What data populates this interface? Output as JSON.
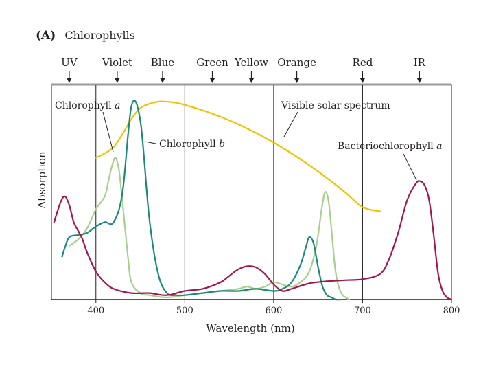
{
  "figure": {
    "panel": "(A)",
    "title": "Chlorophylls"
  },
  "chart_data": {
    "type": "line",
    "title": "(A) Chlorophylls",
    "xlabel": "Wavelength (nm)",
    "ylabel": "Absorption",
    "xlim": [
      350,
      800
    ],
    "ylim": [
      0,
      1
    ],
    "x_ticks": [
      400,
      500,
      600,
      700,
      800
    ],
    "x_tick_labels": [
      "400",
      "500",
      "600",
      "700",
      "800"
    ],
    "band_dividers": [
      400,
      500,
      600,
      700
    ],
    "bands": [
      {
        "label": "UV",
        "x": 370
      },
      {
        "label": "Violet",
        "x": 424
      },
      {
        "label": "Blue",
        "x": 475
      },
      {
        "label": "Green",
        "x": 531
      },
      {
        "label": "Yellow",
        "x": 575
      },
      {
        "label": "Orange",
        "x": 626
      },
      {
        "label": "Red",
        "x": 700
      },
      {
        "label": "IR",
        "x": 764
      }
    ],
    "series": [
      {
        "name": "Visible solar spectrum",
        "color": "#f2c200",
        "x": [
          400,
          410,
          420,
          430,
          440,
          450,
          460,
          470,
          480,
          490,
          500,
          520,
          540,
          560,
          580,
          600,
          620,
          640,
          660,
          680,
          700,
          720
        ],
        "y": [
          0.66,
          0.68,
          0.71,
          0.77,
          0.84,
          0.89,
          0.91,
          0.92,
          0.92,
          0.915,
          0.905,
          0.88,
          0.85,
          0.815,
          0.775,
          0.73,
          0.68,
          0.625,
          0.565,
          0.5,
          0.43,
          0.41
        ]
      },
      {
        "name": "Chlorophyll a",
        "color": "#a8d08d",
        "x": [
          370,
          380,
          390,
          400,
          410,
          414,
          418,
          422,
          426,
          430,
          436,
          440,
          450,
          460,
          480,
          500,
          520,
          540,
          560,
          570,
          580,
          590,
          600,
          610,
          620,
          630,
          640,
          648,
          654,
          658,
          662,
          666,
          670,
          676,
          685
        ],
        "y": [
          0.25,
          0.28,
          0.33,
          0.42,
          0.48,
          0.55,
          0.62,
          0.66,
          0.6,
          0.45,
          0.2,
          0.08,
          0.03,
          0.02,
          0.01,
          0.02,
          0.03,
          0.04,
          0.05,
          0.06,
          0.05,
          0.06,
          0.08,
          0.07,
          0.06,
          0.08,
          0.13,
          0.25,
          0.42,
          0.5,
          0.45,
          0.28,
          0.12,
          0.03,
          0.0
        ]
      },
      {
        "name": "Chlorophyll b",
        "color": "#1b8a78",
        "x": [
          362,
          365,
          370,
          380,
          390,
          400,
          410,
          420,
          430,
          440,
          450,
          460,
          470,
          480,
          490,
          500,
          520,
          540,
          560,
          580,
          600,
          610,
          620,
          630,
          636,
          640,
          645,
          650,
          655,
          660,
          665,
          670,
          676
        ],
        "y": [
          0.2,
          0.24,
          0.29,
          0.3,
          0.31,
          0.34,
          0.36,
          0.36,
          0.5,
          0.9,
          0.83,
          0.38,
          0.12,
          0.03,
          0.02,
          0.02,
          0.03,
          0.04,
          0.04,
          0.05,
          0.04,
          0.05,
          0.08,
          0.16,
          0.24,
          0.29,
          0.26,
          0.15,
          0.06,
          0.02,
          0.01,
          0.0,
          0.0
        ]
      },
      {
        "name": "Bacteriochlorophyll a",
        "color": "#a3164e",
        "x": [
          353,
          360,
          365,
          370,
          375,
          380,
          385,
          390,
          400,
          410,
          420,
          440,
          460,
          480,
          500,
          520,
          540,
          550,
          560,
          570,
          580,
          590,
          600,
          610,
          620,
          640,
          660,
          680,
          700,
          720,
          730,
          740,
          750,
          760,
          765,
          770,
          775,
          780,
          785,
          790,
          795,
          800
        ],
        "y": [
          0.36,
          0.45,
          0.48,
          0.44,
          0.36,
          0.32,
          0.28,
          0.22,
          0.13,
          0.08,
          0.05,
          0.03,
          0.03,
          0.02,
          0.04,
          0.05,
          0.08,
          0.11,
          0.14,
          0.155,
          0.15,
          0.12,
          0.07,
          0.04,
          0.05,
          0.075,
          0.085,
          0.09,
          0.095,
          0.12,
          0.19,
          0.31,
          0.46,
          0.54,
          0.55,
          0.53,
          0.46,
          0.3,
          0.12,
          0.04,
          0.01,
          0.0
        ]
      }
    ],
    "annotations": [
      {
        "text": "Chlorophyll a",
        "points_to": "Chlorophyll a"
      },
      {
        "text": "Chlorophyll b",
        "points_to": "Chlorophyll b"
      },
      {
        "text": "Visible solar spectrum",
        "points_to": "Visible solar spectrum"
      },
      {
        "text": "Bacteriochlorophyll a",
        "points_to": "Bacteriochlorophyll a"
      }
    ]
  }
}
